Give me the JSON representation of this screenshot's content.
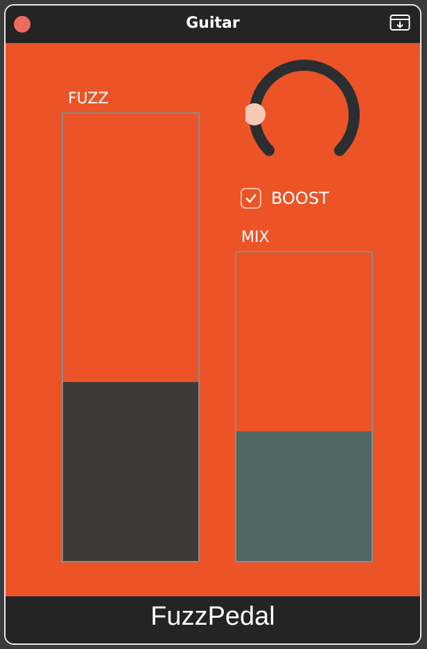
{
  "window": {
    "title": "Guitar",
    "footer_label": "FuzzPedal"
  },
  "controls": {
    "fuzz": {
      "label": "FUZZ",
      "value": 0.4,
      "fill_color": "#3c3b37"
    },
    "knob": {
      "value": 0.0
    },
    "boost": {
      "label": "BOOST",
      "checked": true
    },
    "mix": {
      "label": "MIX",
      "value": 0.42,
      "fill_color": "#506764"
    }
  },
  "colors": {
    "panel": "#ec5427",
    "titlebar": "#242424",
    "close": "#ee6a60",
    "knob_track": "#2b2e30",
    "knob_thumb": "#f6c9b5"
  },
  "icons": {
    "close": "close-dot-icon",
    "download": "download-tray-icon",
    "check": "checkmark-icon"
  }
}
